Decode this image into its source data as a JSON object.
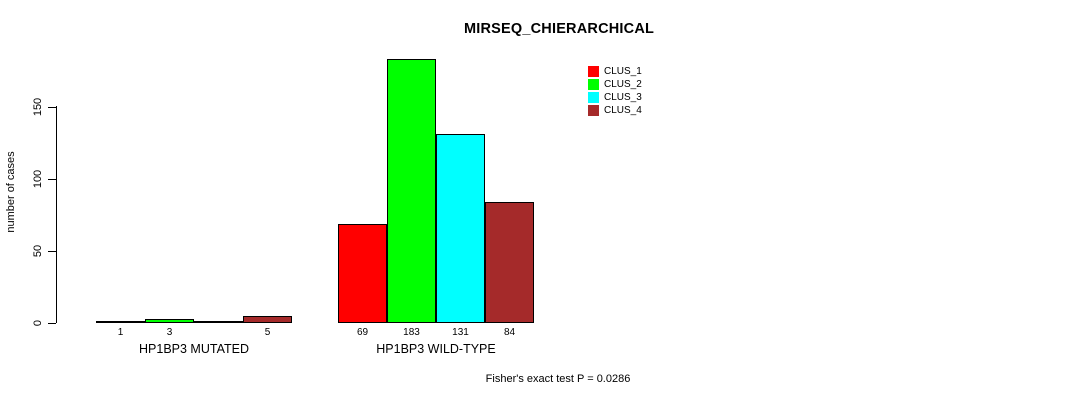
{
  "title": "MIRSEQ_CHIERARCHICAL",
  "footer": {
    "note": "Fisher's exact test P = 0.0286"
  },
  "chart_data": {
    "type": "bar",
    "title": "MIRSEQ_CHIERARCHICAL",
    "xlabel": "",
    "ylabel": "number of cases",
    "categories": [
      "HP1BP3 MUTATED",
      "HP1BP3 WILD-TYPE"
    ],
    "series": [
      {
        "name": "CLUS_1",
        "color": "#ff0000",
        "values": [
          1,
          69
        ]
      },
      {
        "name": "CLUS_2",
        "color": "#00ff00",
        "values": [
          3,
          183
        ]
      },
      {
        "name": "CLUS_3",
        "color": "#00ffff",
        "values": [
          0,
          131
        ]
      },
      {
        "name": "CLUS_4",
        "color": "#a52a2a",
        "values": [
          5,
          84
        ]
      }
    ],
    "bar_labels": [
      [
        "1",
        "3",
        "",
        "5"
      ],
      [
        "69",
        "183",
        "131",
        "84"
      ]
    ],
    "yticks": [
      0,
      50,
      100,
      150
    ],
    "ylim": [
      0,
      183
    ],
    "grid": false,
    "legend_position": "top-right",
    "annotation": "Fisher's exact test P = 0.0286"
  }
}
